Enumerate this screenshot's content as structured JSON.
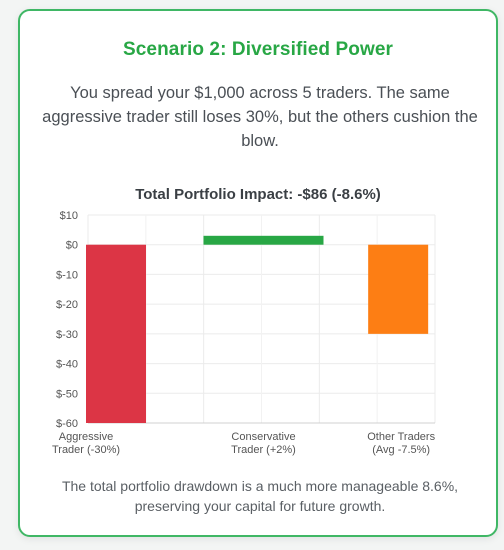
{
  "card": {
    "title": "Scenario 2: Diversified Power",
    "description": "You spread your $1,000 across 5 traders. The same aggressive trader still loses 30%, but the others cushion the blow.",
    "footer": "The total portfolio drawdown is a much more manageable 8.6%, preserving your capital for future growth.",
    "border_color": "#3fb765",
    "title_color": "#28a745"
  },
  "chart_data": {
    "type": "bar",
    "title": "Total Portfolio Impact: -$86 (-8.6%)",
    "categories": [
      [
        "Aggressive",
        "Trader (-30%)"
      ],
      [
        "Conservative",
        "Trader (+2%)"
      ],
      [
        "Other Traders",
        "(Avg -7.5%)"
      ]
    ],
    "values": [
      -60,
      3,
      -30
    ],
    "colors": [
      "#dc3545",
      "#28a745",
      "#fd7e14"
    ],
    "ylim": [
      -60,
      10
    ],
    "yticks": [
      10,
      0,
      -10,
      -20,
      -30,
      -40,
      -50,
      -60
    ],
    "ytick_labels": [
      "$10",
      "$0",
      "$-10",
      "$-20",
      "$-30",
      "$-40",
      "$-50",
      "$-60"
    ],
    "grid": true,
    "legend": "none"
  }
}
